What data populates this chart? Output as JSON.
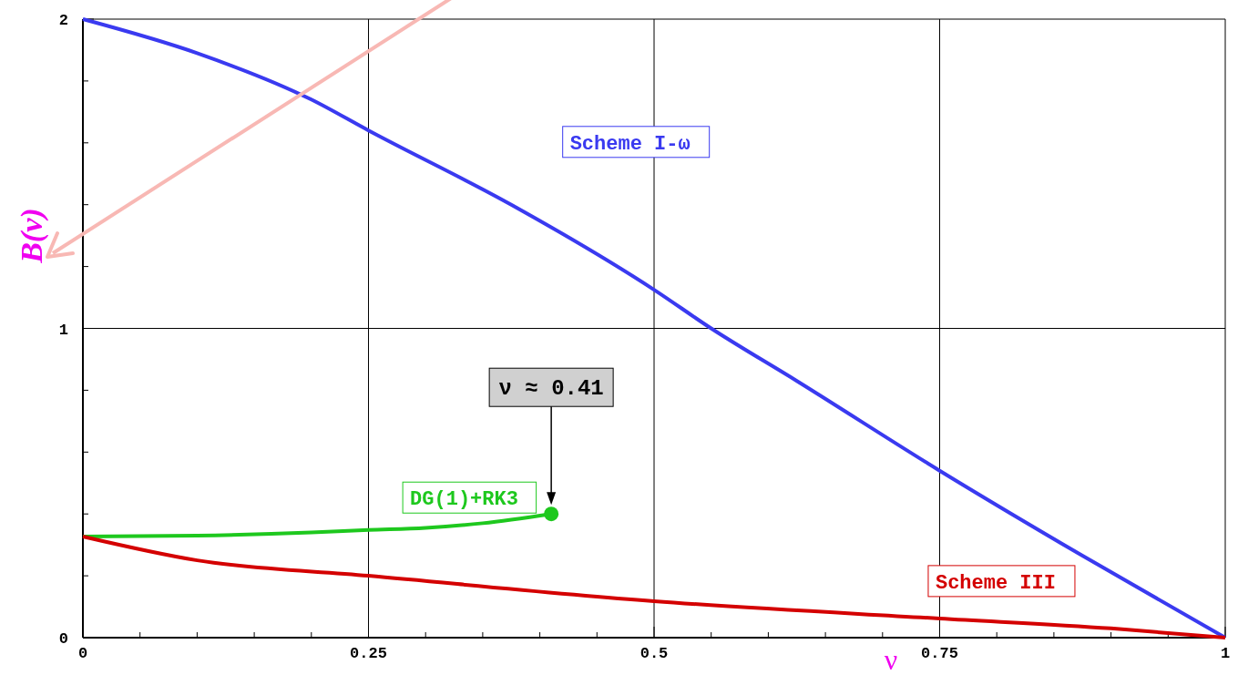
{
  "chart_data": {
    "type": "line",
    "xlabel": "ν",
    "ylabel": "B(ν)",
    "xlim": [
      0,
      1
    ],
    "ylim": [
      0,
      2
    ],
    "xticks": [
      0,
      {
        "value": 0.05,
        "label": null
      },
      {
        "value": 0.1,
        "label": null
      },
      {
        "value": 0.15,
        "label": null
      },
      {
        "value": 0.2,
        "label": null
      },
      0.25,
      {
        "value": 0.3,
        "label": null
      },
      {
        "value": 0.35,
        "label": null
      },
      {
        "value": 0.4,
        "label": null
      },
      {
        "value": 0.45,
        "label": null
      },
      0.5,
      {
        "value": 0.55,
        "label": null
      },
      {
        "value": 0.6,
        "label": null
      },
      {
        "value": 0.65,
        "label": null
      },
      {
        "value": 0.7,
        "label": null
      },
      0.75,
      {
        "value": 0.8,
        "label": null
      },
      {
        "value": 0.85,
        "label": null
      },
      {
        "value": 0.9,
        "label": null
      },
      {
        "value": 0.95,
        "label": null
      },
      1
    ],
    "yticks": [
      0,
      {
        "value": 0.2,
        "label": null
      },
      {
        "value": 0.4,
        "label": null
      },
      {
        "value": 0.6,
        "label": null
      },
      {
        "value": 0.8,
        "label": null
      },
      1,
      {
        "value": 1.2,
        "label": null
      },
      {
        "value": 1.4,
        "label": null
      },
      {
        "value": 1.6,
        "label": null
      },
      {
        "value": 1.8,
        "label": null
      },
      2
    ],
    "grid": true,
    "marker": "none",
    "line_style": "solid",
    "series": [
      {
        "name": "Scheme I-ω",
        "color": "#3a3af0",
        "x": [
          0,
          0.1,
          0.2,
          0.25,
          0.375,
          0.5,
          0.55,
          0.625,
          0.75,
          0.875,
          1
        ],
        "values": [
          2,
          1.89,
          1.74,
          1.64,
          1.4,
          1.125,
          1.0,
          0.83,
          0.54,
          0.265,
          0
        ]
      },
      {
        "name": "DG(1)+RK3",
        "color": "#1ec81e",
        "x": [
          0,
          0.1,
          0.2,
          0.25,
          0.3,
          0.35,
          0.41
        ],
        "values": [
          0.327,
          0.33,
          0.34,
          0.348,
          0.355,
          0.37,
          0.4
        ]
      },
      {
        "name": "Scheme III",
        "color": "#d40000",
        "x": [
          0,
          0.1,
          0.25,
          0.5,
          0.75,
          0.9,
          1
        ],
        "values": [
          0.327,
          0.25,
          0.2,
          0.118,
          0.062,
          0.03,
          0
        ]
      },
      {
        "type": "scatter",
        "color": "#1ec81e",
        "x": [
          0.41
        ],
        "values": [
          0.4
        ],
        "marker": "circle"
      }
    ],
    "annotations": [
      "ν ≈ 0.41"
    ]
  }
}
